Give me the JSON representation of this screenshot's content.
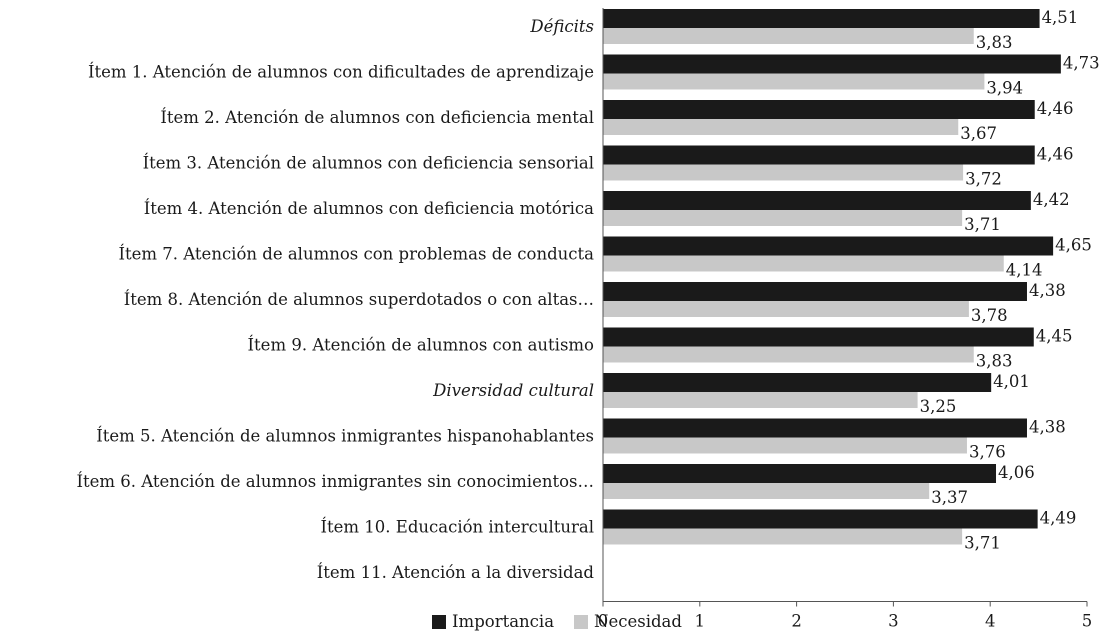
{
  "chart_data": {
    "type": "bar",
    "orientation": "horizontal",
    "categories": [
      "Déficits",
      "Ítem 1. Atención de alumnos con dificultades de aprendizaje",
      "Ítem 2. Atención de alumnos con deficiencia mental",
      "Ítem 3. Atención de alumnos con deficiencia sensorial",
      "Ítem 4. Atención de alumnos con deficiencia motórica",
      "Ítem 7. Atención de alumnos con problemas de conducta",
      "Ítem 8. Atención de alumnos superdotados o con altas…",
      "Ítem 9. Atención de alumnos con autismo",
      "Diversidad cultural",
      "Ítem 5. Atención de alumnos inmigrantes hispanohablantes",
      "Ítem 6. Atención de alumnos inmigrantes sin conocimientos…",
      "Ítem 10. Educación intercultural",
      "Ítem 11. Atención a la diversidad"
    ],
    "italic_categories": [
      "Déficits",
      "Diversidad cultural"
    ],
    "series": [
      {
        "name": "Importancia",
        "color": "#1a1a1a",
        "values": [
          4.51,
          4.73,
          4.46,
          4.46,
          4.42,
          4.65,
          4.38,
          4.45,
          4.01,
          4.38,
          4.06,
          4.49,
          null
        ],
        "labels": [
          "4,51",
          "4,73",
          "4,46",
          "4,46",
          "4,42",
          "4,65",
          "4,38",
          "4,45",
          "4,01",
          "4,38",
          "4,06",
          "4,49",
          ""
        ]
      },
      {
        "name": "Necesidad",
        "color": "#c8c8c8",
        "values": [
          3.83,
          3.94,
          3.67,
          3.72,
          3.71,
          4.14,
          3.78,
          3.83,
          3.25,
          3.76,
          3.37,
          3.71,
          null
        ],
        "labels": [
          "3,83",
          "3,94",
          "3,67",
          "3,72",
          "3,71",
          "4,14",
          "3,78",
          "3,83",
          "3,25",
          "3,76",
          "3,37",
          "3,71",
          ""
        ]
      }
    ],
    "xlim": [
      0,
      5
    ],
    "xticks": [
      "0",
      "1",
      "2",
      "3",
      "4",
      "5"
    ],
    "grid": false,
    "legend_position": "bottom-center"
  }
}
